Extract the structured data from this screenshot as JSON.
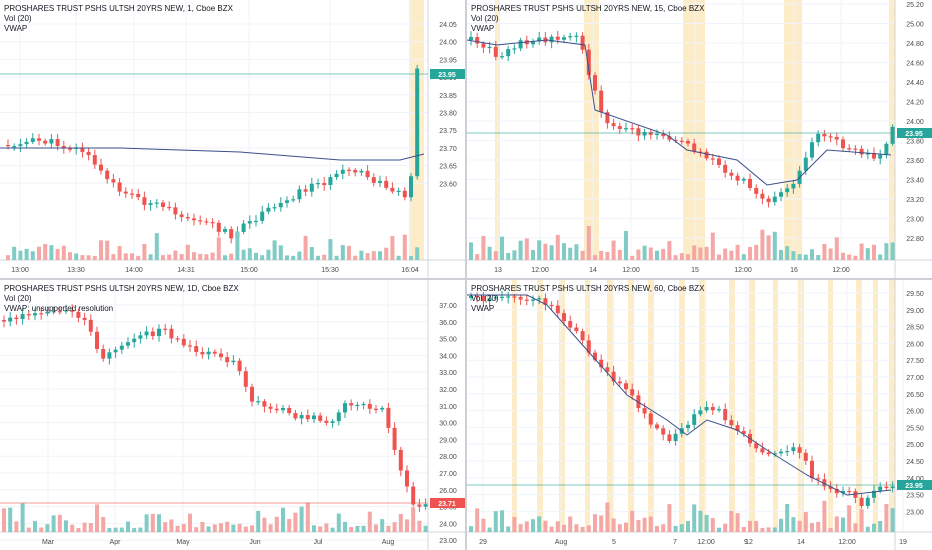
{
  "colors": {
    "up": "#26a69a",
    "down": "#ef5350",
    "upvol": "#80cbc4",
    "downvol": "#f4a7a5",
    "vwap": "#3b4f8c",
    "price_line": "#26a69a",
    "session": "#fdecc8",
    "grid": "#f0f3fa",
    "axis_text": "#4a4a4a"
  },
  "panes": [
    {
      "legend": {
        "title": "PROSHARES TRUST PSHS ULTSH 20YRS NEW, 1, Cboe BZX",
        "vol": "Vol (20)",
        "vwap": "VWAP"
      },
      "price_ticks": [
        "24.05",
        "24.00",
        "23.95",
        "23.90",
        "23.85",
        "23.80",
        "23.75",
        "23.70",
        "23.65",
        "23.60"
      ],
      "time_ticks": [
        "13:00",
        "13:30",
        "14:00",
        "14:31",
        "15:00",
        "15:30",
        "16:04"
      ],
      "current_price": "23.95"
    },
    {
      "legend": {
        "title": "PROSHARES TRUST PSHS ULTSH 20YRS NEW, 15, Cboe BZX",
        "vol": "Vol (20)",
        "vwap": "VWAP"
      },
      "price_ticks": [
        "25.20",
        "25.00",
        "24.80",
        "24.60",
        "24.40",
        "24.20",
        "24.00",
        "23.80",
        "23.60",
        "23.40",
        "23.20",
        "23.00",
        "22.80"
      ],
      "time_ticks": [
        "13",
        "12:00",
        "14",
        "12:00",
        "15",
        "12:00",
        "16",
        "12:00"
      ],
      "current_price": "23.95"
    },
    {
      "legend": {
        "title": "PROSHARES TRUST PSHS ULTSH 20YRS NEW, 1D, Cboe BZX",
        "vol": "Vol (20)",
        "vwap": "VWAP: unsupported resolution"
      },
      "price_ticks": [
        "37.00",
        "36.00",
        "35.00",
        "34.00",
        "33.00",
        "32.00",
        "31.00",
        "30.00",
        "29.00",
        "28.00",
        "27.00",
        "26.00",
        "25.00",
        "24.00",
        "23.00"
      ],
      "time_ticks": [
        "Mar",
        "Apr",
        "May",
        "Jun",
        "Jul",
        "Aug"
      ],
      "current_price": "23.71"
    },
    {
      "legend": {
        "title": "PROSHARES TRUST PSHS ULTSH 20YRS NEW, 60, Cboe BZX",
        "vol": "Vol (20)",
        "vwap": "VWAP"
      },
      "price_ticks": [
        "29.50",
        "29.00",
        "28.50",
        "28.00",
        "27.50",
        "27.00",
        "26.50",
        "26.00",
        "25.50",
        "25.00",
        "24.50",
        "24.00",
        "23.50",
        "23.00"
      ],
      "time_ticks": [
        "29",
        "Aug",
        "5",
        "7",
        "12:00",
        "9",
        "12",
        "14",
        "12:00",
        "19"
      ],
      "current_price": "23.95"
    }
  ]
}
